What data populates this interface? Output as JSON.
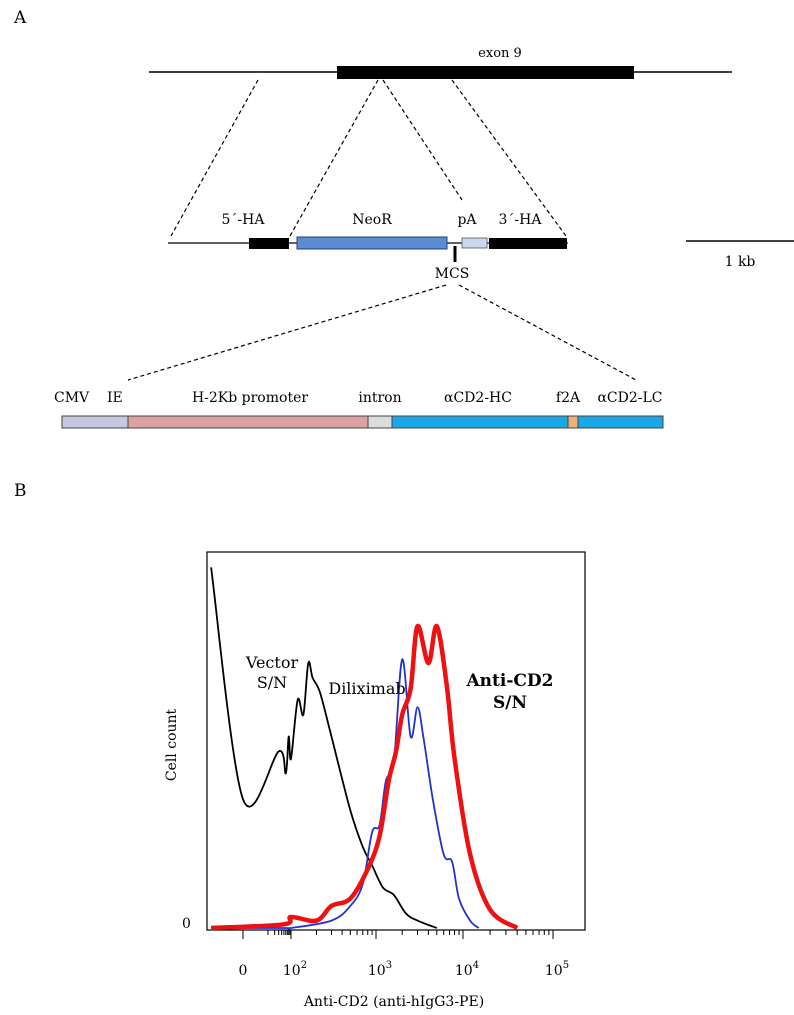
{
  "panel_a": {
    "letter": "A",
    "exon_label": "exon 9",
    "five_ha": "5´-HA",
    "neor": "NeoR",
    "pa": "pA",
    "three_ha": "3´-HA",
    "mcs": "MCS",
    "scale_bar": "1 kb",
    "cassette": {
      "cmv": "CMV",
      "ie": "IE",
      "h2kb": "H-2Kb promoter",
      "intron": "intron",
      "hc": "αCD2-HC",
      "f2a": "f2A",
      "lc": "αCD2-LC"
    },
    "colors": {
      "homology_arm": "#000000",
      "neor": "#5b8bd1",
      "pa": "#c9d8ef",
      "cmv": "#c6c8e0",
      "h2kb": "#dba2a0",
      "intron": "#dcdcdc",
      "antibody": "#1aa7e8",
      "f2a": "#f0b07a"
    }
  },
  "panel_b": {
    "letter": "B",
    "ylabel": "Cell count",
    "xlabel": "Anti-CD2 (anti-hIgG3-PE)",
    "y_zero_label": "0",
    "x_tick_labels": [
      {
        "base": "0",
        "sup": ""
      },
      {
        "base": "10",
        "sup": "2"
      },
      {
        "base": "10",
        "sup": "3"
      },
      {
        "base": "10",
        "sup": "4"
      },
      {
        "base": "10",
        "sup": "5"
      }
    ],
    "label_vector_1": "Vector",
    "label_vector_2": "S/N",
    "label_diliximab": "Diliximab",
    "label_anticd2_1": "Anti-CD2",
    "label_anticd2_2": "S/N"
  },
  "chart_data": {
    "type": "line",
    "title": "",
    "xlabel": "Anti-CD2 (anti-hIgG3-PE)",
    "ylabel": "Cell count",
    "x_scale": "biexponential",
    "x_tick_labels": [
      "0",
      "10^2",
      "10^3",
      "10^4",
      "10^5"
    ],
    "y_tick_labels": [
      "0"
    ],
    "grid": false,
    "series": [
      {
        "name": "Vector S/N",
        "color": "#000000",
        "x": [
          -20,
          0,
          30,
          60,
          80,
          100,
          120,
          140,
          160,
          180,
          220,
          300,
          500,
          700,
          900,
          1200,
          1600,
          2200,
          3000,
          5000
        ],
        "y": [
          0.98,
          0.35,
          0.48,
          0.42,
          0.52,
          0.46,
          0.62,
          0.58,
          0.72,
          0.68,
          0.64,
          0.52,
          0.32,
          0.22,
          0.17,
          0.11,
          0.09,
          0.04,
          0.02,
          0.0
        ]
      },
      {
        "name": "Diliximab",
        "color": "#2233cc",
        "x": [
          -20,
          50,
          100,
          300,
          500,
          700,
          900,
          1100,
          1300,
          1600,
          2000,
          2500,
          3000,
          3500,
          4500,
          6000,
          7500,
          9000,
          12000,
          15000
        ],
        "y": [
          0.0,
          0.0,
          0.0,
          0.02,
          0.06,
          0.12,
          0.26,
          0.28,
          0.4,
          0.45,
          0.73,
          0.52,
          0.6,
          0.52,
          0.35,
          0.2,
          0.18,
          0.08,
          0.02,
          0.0
        ]
      },
      {
        "name": "Anti-CD2 S/N",
        "color": "#ee1111",
        "x": [
          -20,
          50,
          100,
          200,
          300,
          500,
          800,
          1100,
          1400,
          1700,
          2000,
          2500,
          3000,
          4000,
          5000,
          6500,
          8000,
          12000,
          20000,
          40000
        ],
        "y": [
          0.0,
          0.01,
          0.03,
          0.02,
          0.06,
          0.08,
          0.16,
          0.25,
          0.4,
          0.48,
          0.58,
          0.65,
          0.82,
          0.72,
          0.82,
          0.66,
          0.46,
          0.2,
          0.05,
          0.0
        ]
      }
    ]
  }
}
